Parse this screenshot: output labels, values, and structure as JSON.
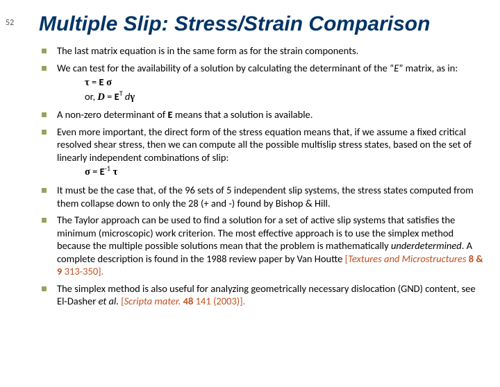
{
  "slide_number": "52",
  "title": "Multiple Slip: Stress/Strain Comparison",
  "bullets": {
    "b1": "The last matrix equation is in the same form as for the strain components.",
    "b2_pre": "We can test for the availability of a solution by calculating the determinant of the “",
    "b2_E": "E",
    "b2_post": "” matrix, as in:",
    "eq1_lhs": "τ",
    "eq1_eq": " = ",
    "eq1_E": "E",
    "eq1_sigma": " σ",
    "eq2_or": "or, ",
    "eq2_D": "D",
    "eq2_eq": " = ",
    "eq2_E": "E",
    "eq2_T": "T",
    "eq2_d": " d",
    "eq2_gamma": "γ",
    "b3_pre": "A non-zero determinant of ",
    "b3_E": "E",
    "b3_post": " means that a solution is available.",
    "b4": "Even more important, the direct form of the stress equation means that, if we assume a fixed critical resolved shear stress, then we can compute all the possible multislip stress states, based on the set of linearly independent combinations of slip:",
    "eq3_sigma": "σ",
    "eq3_eq": " = ",
    "eq3_E": "E",
    "eq3_inv": "-1",
    "eq3_tau": "  τ",
    "b5": "It must be the case that, of the 96 sets of 5 independent slip systems, the stress states computed from them collapse down to only the 28 (+ and -) found by Bishop & Hill.",
    "b6_pre": "The Taylor approach can be used to find a solution for a set of active slip systems that satisfies the minimum (microscopic) work criterion.  The most effective approach is to use the simplex method because the multiple possible solutions mean that the problem is mathematically ",
    "b6_under": "underdetermined",
    "b6_post1": ".  A complete description is found in the 1988 review paper by Van Houtte ",
    "b6_ref_open": "[",
    "b6_ref_title": "Textures and Microstructures",
    "b6_ref_vol": " 8 & 9 ",
    "b6_ref_pages": "313-350].",
    "b7_pre": "The simplex method is also useful for analyzing geometrically necessary dislocation (GND) content, see El-Dasher ",
    "b7_etal": "et al.",
    "b7_sp": " ",
    "b7_ref_open": "[",
    "b7_ref_title": "Scripta mater.",
    "b7_ref_vol": " 48 ",
    "b7_ref_pages": "141 (2003)]."
  },
  "colors": {
    "title": "#003366",
    "bullet_marker": "#9aa060",
    "reference": "#c05020"
  }
}
